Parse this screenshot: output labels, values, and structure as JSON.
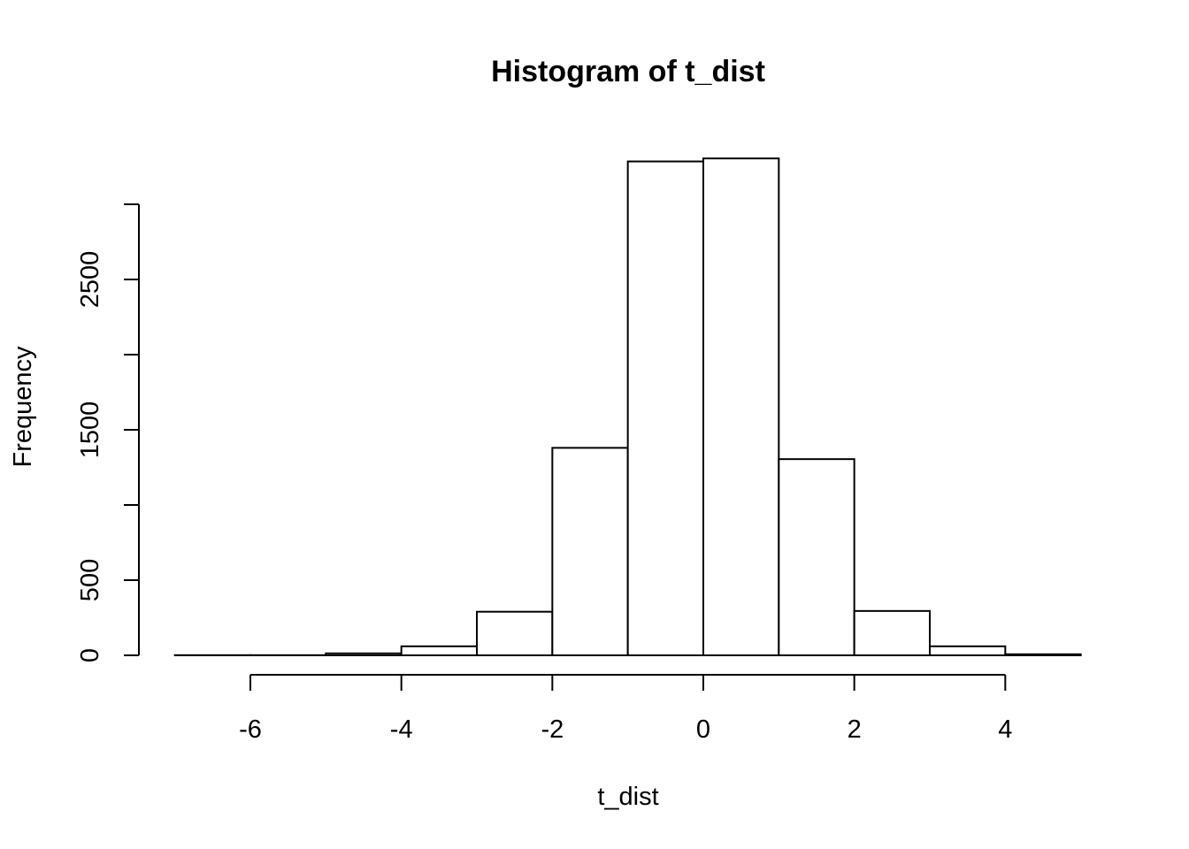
{
  "chart_data": {
    "type": "bar",
    "title": "Histogram of t_dist",
    "xlabel": "t_dist",
    "ylabel": "Frequency",
    "bins": [
      {
        "x0": -7,
        "x1": -6,
        "count": 1
      },
      {
        "x0": -6,
        "x1": -5,
        "count": 1
      },
      {
        "x0": -5,
        "x1": -4,
        "count": 13
      },
      {
        "x0": -4,
        "x1": -3,
        "count": 60
      },
      {
        "x0": -3,
        "x1": -2,
        "count": 290
      },
      {
        "x0": -2,
        "x1": -1,
        "count": 1380
      },
      {
        "x0": -1,
        "x1": 0,
        "count": 3285
      },
      {
        "x0": 0,
        "x1": 1,
        "count": 3305
      },
      {
        "x0": 1,
        "x1": 2,
        "count": 1305
      },
      {
        "x0": 2,
        "x1": 3,
        "count": 295
      },
      {
        "x0": 3,
        "x1": 4,
        "count": 60
      },
      {
        "x0": 4,
        "x1": 5,
        "count": 7
      }
    ],
    "xlim": [
      -7,
      5
    ],
    "ylim": [
      0,
      3300
    ],
    "x_ticks": [
      -6,
      -4,
      -2,
      0,
      2,
      4
    ],
    "x_tick_labels": [
      "-6",
      "-4",
      "-2",
      "0",
      "2",
      "4"
    ],
    "y_ticks": [
      0,
      500,
      1000,
      1500,
      2000,
      2500,
      3000
    ],
    "y_tick_labels": [
      "0",
      "500",
      "",
      "1500",
      "",
      "2500",
      ""
    ],
    "grid": false,
    "bar_fill": "#ffffff",
    "bar_stroke": "#000000"
  }
}
